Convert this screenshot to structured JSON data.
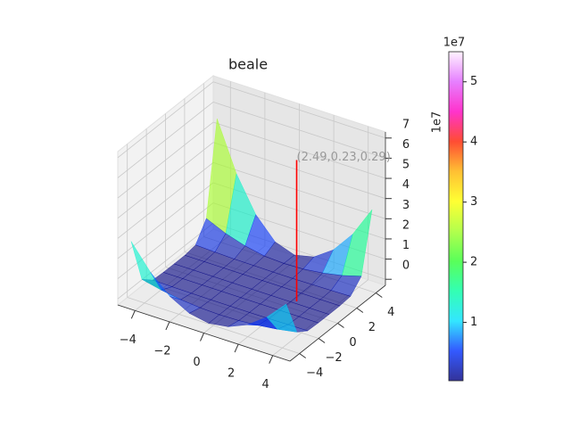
{
  "chart_data": {
    "type": "surface3d",
    "title": "beale",
    "x": [
      -4.5,
      -3.375,
      -2.25,
      -1.125,
      0,
      1.125,
      2.25,
      3.375,
      4.5
    ],
    "y": [
      -4.5,
      -3.375,
      -2.25,
      -1.125,
      0,
      1.125,
      2.25,
      3.375,
      4.5
    ],
    "z": [
      [
        2.8,
        1.58,
        0.7,
        0.18,
        0,
        0.14,
        0.55,
        1.24,
        2.2
      ],
      [
        0.5,
        0.28,
        0.12,
        0.03,
        0,
        0.02,
        0.1,
        0.22,
        0.39
      ],
      [
        0.04,
        0.02,
        0.01,
        0,
        0,
        0,
        0.01,
        0.02,
        0.03
      ],
      [
        0,
        0,
        0,
        0,
        0,
        0,
        0,
        0,
        0
      ],
      [
        0,
        0,
        0,
        0,
        0,
        0,
        0,
        0,
        0
      ],
      [
        0,
        0,
        0,
        0,
        0,
        0,
        0,
        0,
        0
      ],
      [
        0.09,
        0.05,
        0.02,
        0.01,
        0,
        0,
        0.01,
        0.03,
        0.05
      ],
      [
        0.98,
        0.55,
        0.25,
        0.06,
        0,
        0.04,
        0.16,
        0.35,
        0.62
      ],
      [
        5.5,
        3.09,
        1.38,
        0.34,
        0,
        0.22,
        0.88,
        1.97,
        3.5
      ]
    ],
    "xlim": [
      -5,
      5
    ],
    "ylim": [
      -5,
      5
    ],
    "zlim": [
      -0.3,
      7.3
    ],
    "xticks": [
      {
        "value": -4,
        "label": "−4"
      },
      {
        "value": -2,
        "label": "−2"
      },
      0,
      2,
      4
    ],
    "yticks": [
      {
        "value": -4,
        "label": "−4"
      },
      {
        "value": -2,
        "label": "−2"
      },
      0,
      2,
      4
    ],
    "zticks": [
      0,
      1,
      2,
      3,
      4,
      5,
      6,
      7
    ],
    "z_offset_label": "1e7",
    "colormap": [
      "#000080",
      "#0030ff",
      "#00e0ff",
      "#00ffa0",
      "#30ff30",
      "#a0ff20",
      "#ffff00",
      "#ffb000",
      "#ff2000",
      "#ff00c0",
      "#e060ff",
      "#fff0ff"
    ],
    "alpha": 0.6,
    "colorbar": {
      "lim": [
        0.03,
        5.5
      ],
      "ticks": [
        1,
        2,
        3,
        4,
        5
      ],
      "offset_label": "1e7"
    },
    "annotation": {
      "text": "(2.49,0.23,0.29)",
      "x": 2.49,
      "y": 0.23,
      "z": [
        0,
        7
      ],
      "color": "#ff0000"
    }
  }
}
